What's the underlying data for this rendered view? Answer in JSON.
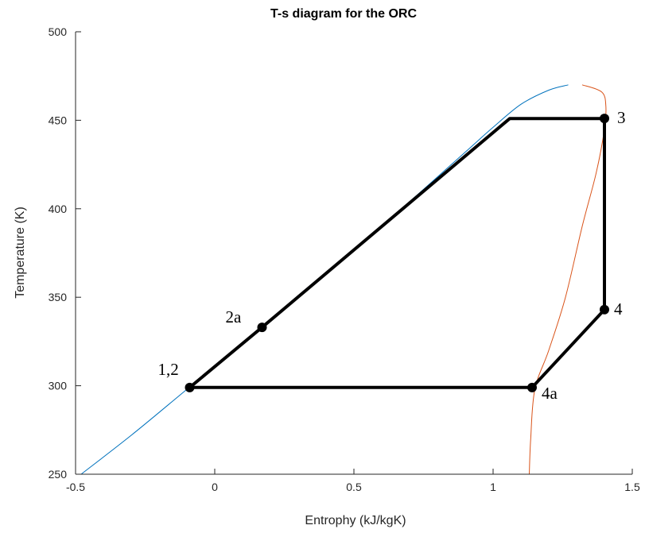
{
  "chart_data": {
    "type": "line",
    "title": "T-s diagram for the ORC",
    "xlabel": "Entrophy (kJ/kgK)",
    "ylabel": "Temperature (K)",
    "xlim": [
      -0.5,
      1.5
    ],
    "ylim": [
      250,
      500
    ],
    "xticks": [
      "-0.5",
      "0",
      "0.5",
      "1",
      "1.5"
    ],
    "yticks": [
      "250",
      "300",
      "350",
      "400",
      "450",
      "500"
    ],
    "grid": false,
    "series": [
      {
        "kind": "saturated-liquid-curve",
        "color": "#0072BD",
        "x": [
          -0.48,
          -0.3,
          -0.1,
          0.1,
          0.3,
          0.5,
          0.7,
          0.9,
          1.0,
          1.1,
          1.2,
          1.27
        ],
        "y": [
          250,
          272,
          298,
          324,
          351,
          377,
          404,
          432,
          446,
          459,
          467,
          470
        ]
      },
      {
        "kind": "saturated-vapor-curve",
        "color": "#D95319",
        "x": [
          1.13,
          1.135,
          1.15,
          1.2,
          1.26,
          1.32,
          1.37,
          1.4,
          1.405,
          1.39,
          1.32
        ],
        "y": [
          250,
          270,
          298,
          320,
          350,
          390,
          420,
          445,
          458,
          466,
          470
        ]
      },
      {
        "kind": "cycle",
        "color": "#000000",
        "x": [
          -0.09,
          0.17,
          1.06,
          1.4,
          1.4,
          1.14,
          -0.09
        ],
        "y": [
          299,
          333,
          451,
          451,
          343,
          299,
          299
        ]
      }
    ],
    "points": [
      {
        "label": "1,2",
        "x": -0.09,
        "y": 299
      },
      {
        "label": "2a",
        "x": 0.17,
        "y": 333
      },
      {
        "label": "3",
        "x": 1.4,
        "y": 451
      },
      {
        "label": "4",
        "x": 1.4,
        "y": 343
      },
      {
        "label": "4a",
        "x": 1.14,
        "y": 299
      }
    ]
  }
}
